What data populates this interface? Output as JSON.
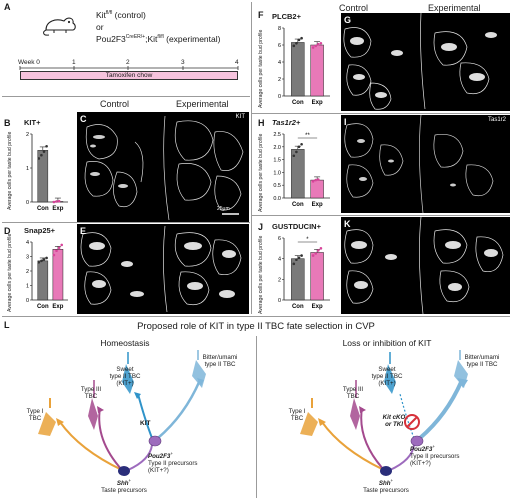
{
  "panel_a": {
    "label": "A",
    "line1_text": "Kit",
    "line1_sup": "fl/fl",
    "line1_suffix": " (control)",
    "or_text": "or",
    "line3_text": "Pou2F3",
    "line3_sup1": "CreER/+",
    "line3_mid": ";Kit",
    "line3_sup2": "fl/fl",
    "line3_suffix": " (experimental)",
    "timeline_week_label": "Week 0",
    "timeline_ticks": [
      "1",
      "2",
      "3",
      "4"
    ],
    "bar_label": "Tamoxifen chow"
  },
  "micrograph_headers": {
    "control": "Control",
    "experimental": "Experimental"
  },
  "panel_labels": {
    "b": "B",
    "c": "C",
    "d": "D",
    "e": "E",
    "f": "F",
    "g": "G",
    "h": "H",
    "i": "I",
    "j": "J",
    "k": "K",
    "l": "L"
  },
  "micro_tags": {
    "c": "KIT",
    "i": "Tas1r2",
    "scalebar": "25µm"
  },
  "charts_common": {
    "ylabel": "Average cells per taste bud profile",
    "xlabels": [
      "Con",
      "Exp"
    ],
    "con_color": "#7a7a7a",
    "exp_color": "#e879b8"
  },
  "chart_data": [
    {
      "panel": "B",
      "type": "bar",
      "title": "KIT+",
      "categories": [
        "Con",
        "Exp"
      ],
      "values": [
        1.9,
        0.02
      ],
      "ylim": [
        0,
        2.5
      ],
      "yticks": [
        "0",
        "1",
        "2"
      ],
      "points_con": [
        1.6,
        1.72,
        1.85,
        2.05
      ],
      "points_exp": [
        0.0,
        0.02,
        0.03
      ],
      "significance": ""
    },
    {
      "panel": "D",
      "type": "bar",
      "title": "Snap25+",
      "categories": [
        "Con",
        "Exp"
      ],
      "values": [
        2.7,
        3.5
      ],
      "ylim": [
        0,
        4
      ],
      "yticks": [
        "0",
        "1",
        "2",
        "3",
        "4"
      ],
      "points_con": [
        2.6,
        2.7,
        2.8,
        2.9
      ],
      "points_exp": [
        3.1,
        3.4,
        3.6,
        3.8
      ],
      "significance": ""
    },
    {
      "panel": "F",
      "type": "bar",
      "title": "PLCB2+",
      "categories": [
        "Con",
        "Exp"
      ],
      "values": [
        6.3,
        6.0
      ],
      "ylim": [
        0,
        8
      ],
      "yticks": [
        "0",
        "2",
        "4",
        "6",
        "8"
      ],
      "points_con": [
        5.9,
        6.2,
        6.6,
        6.8
      ],
      "points_exp": [
        5.7,
        5.9,
        6.1,
        6.2
      ],
      "significance": ""
    },
    {
      "panel": "H",
      "type": "bar",
      "title": "Tas1r2+",
      "categories": [
        "Con",
        "Exp"
      ],
      "values": [
        1.9,
        0.7
      ],
      "ylim": [
        0,
        2.5
      ],
      "yticks": [
        "0.0",
        "0.5",
        "1.0",
        "1.5",
        "2.0",
        "2.5"
      ],
      "points_con": [
        1.65,
        1.8,
        2.0,
        2.1
      ],
      "points_exp": [
        0.65,
        0.7,
        0.72
      ],
      "significance": "**"
    },
    {
      "panel": "J",
      "type": "bar",
      "title": "GUSTDUCIN+",
      "categories": [
        "Con",
        "Exp"
      ],
      "values": [
        4.0,
        4.6
      ],
      "ylim": [
        0,
        6
      ],
      "yticks": [
        "0",
        "2",
        "4",
        "6"
      ],
      "points_con": [
        3.5,
        3.9,
        4.1,
        4.3
      ],
      "points_exp": [
        4.3,
        4.5,
        4.8,
        5.0
      ],
      "significance": "*"
    }
  ],
  "panel_l": {
    "title": "Proposed role of KIT in type II TBC fate selection in CVP",
    "left_title": "Homeostasis",
    "right_title": "Loss or inhibition of KIT",
    "sweet": "Sweet\ntype II TBC\n(KIT+)",
    "bitter": "Bitter/umami\ntype II TBC",
    "type3": "Type III\nTBC",
    "type1": "Type I\nTBC",
    "kit": "KIT",
    "pou_italic": "Pou2F3",
    "pou_sup": "+",
    "pou_rest": "Type II precursors\n(KIT+?)",
    "shh_italic": "Shh",
    "shh_sup": "+",
    "shh_rest": "Taste precursors",
    "kit_cko": "Kit cKO\nor TKI"
  },
  "colors": {
    "bitter_blue": "#7fb6d9",
    "sweet_blue": "#2f93c9",
    "type1_orange": "#e9a23a",
    "type3_purple": "#a44a8e",
    "precursor_navy": "#2a2e7a",
    "pou_purple": "#9d6bbd",
    "inhibit_red": "#d6313a",
    "bar_pink": "#f6c3dd"
  }
}
